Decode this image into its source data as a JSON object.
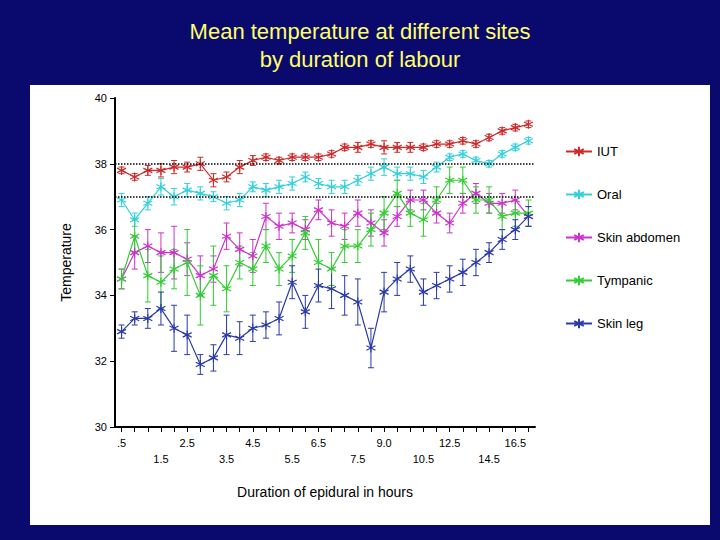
{
  "chart_data": {
    "type": "line",
    "title": "Mean temperature at different sites\nby duration of labour",
    "x_label": "Duration of epidural in hours",
    "y_label": "Temperature",
    "categories": [
      ".5",
      null,
      null,
      "1.5",
      null,
      "2.5",
      null,
      null,
      "3.5",
      null,
      "4.5",
      null,
      null,
      "5.5",
      null,
      "6.5",
      null,
      null,
      "7.5",
      null,
      "9.0",
      null,
      null,
      "10.5",
      null,
      "12.5",
      null,
      null,
      "14.5",
      null,
      "16.5",
      null
    ],
    "ylim": [
      30,
      40
    ],
    "yticks": [
      30,
      32,
      34,
      36,
      38,
      40
    ],
    "grid": false,
    "legend": "right",
    "marker": "asterisk",
    "line_style": "solid",
    "reference_lines": [
      38,
      37
    ],
    "series": [
      {
        "name": "IUT",
        "color": "#cc2b2b",
        "values": [
          37.8,
          37.6,
          37.8,
          37.8,
          37.9,
          37.9,
          38.0,
          37.5,
          37.6,
          37.9,
          38.1,
          38.2,
          38.1,
          38.2,
          38.2,
          38.2,
          38.3,
          38.5,
          38.5,
          38.6,
          38.5,
          38.5,
          38.5,
          38.5,
          38.6,
          38.6,
          38.7,
          38.6,
          38.8,
          39.0,
          39.1,
          39.2
        ],
        "errors": [
          0.1,
          0.1,
          0.15,
          0.2,
          0.2,
          0.15,
          0.2,
          0.2,
          0.15,
          0.2,
          0.15,
          0.1,
          0.1,
          0.1,
          0.1,
          0.1,
          0.1,
          0.1,
          0.15,
          0.1,
          0.2,
          0.15,
          0.15,
          0.1,
          0.1,
          0.1,
          0.1,
          0.1,
          0.1,
          0.1,
          0.1,
          0.1
        ]
      },
      {
        "name": "Oral",
        "color": "#33d0dc",
        "values": [
          36.9,
          36.3,
          36.8,
          37.3,
          37.0,
          37.2,
          37.1,
          37.0,
          36.8,
          36.9,
          37.3,
          37.2,
          37.3,
          37.4,
          37.6,
          37.4,
          37.3,
          37.3,
          37.5,
          37.7,
          37.9,
          37.7,
          37.7,
          37.6,
          37.9,
          38.2,
          38.3,
          38.1,
          38.0,
          38.3,
          38.5,
          38.7
        ],
        "errors": [
          0.2,
          0.2,
          0.2,
          0.25,
          0.25,
          0.2,
          0.2,
          0.15,
          0.2,
          0.2,
          0.15,
          0.2,
          0.2,
          0.2,
          0.15,
          0.15,
          0.2,
          0.2,
          0.15,
          0.2,
          0.25,
          0.2,
          0.2,
          0.2,
          0.15,
          0.1,
          0.1,
          0.1,
          0.1,
          0.1,
          0.1,
          0.1
        ]
      },
      {
        "name": "Skin abdomen",
        "color": "#cc33cc",
        "values": [
          34.5,
          35.3,
          35.5,
          35.3,
          35.3,
          35.1,
          34.6,
          34.8,
          35.8,
          35.4,
          35.2,
          36.4,
          36.1,
          36.2,
          36.0,
          36.6,
          36.2,
          36.1,
          36.5,
          36.2,
          35.9,
          36.4,
          36.9,
          36.9,
          36.5,
          36.2,
          36.8,
          37.1,
          36.8,
          36.8,
          36.9,
          36.4
        ],
        "errors": [
          0.3,
          0.5,
          0.5,
          0.6,
          0.8,
          0.5,
          0.6,
          0.4,
          0.4,
          0.5,
          0.5,
          0.4,
          0.4,
          0.3,
          0.3,
          0.3,
          0.4,
          0.4,
          0.4,
          0.4,
          0.4,
          0.3,
          0.3,
          0.3,
          0.3,
          0.3,
          0.3,
          0.3,
          0.3,
          0.3,
          0.3,
          0.3
        ]
      },
      {
        "name": "Tympanic",
        "color": "#33cc33",
        "values": [
          34.5,
          35.8,
          34.6,
          34.4,
          34.8,
          35.0,
          34.0,
          34.6,
          34.2,
          35.0,
          34.8,
          35.5,
          34.8,
          35.2,
          35.9,
          35.0,
          34.8,
          35.5,
          35.5,
          36.0,
          36.5,
          37.1,
          36.5,
          36.3,
          36.9,
          37.5,
          37.5,
          36.9,
          36.9,
          36.4,
          36.5,
          36.5
        ],
        "errors": [
          0.3,
          0.5,
          0.8,
          0.8,
          0.6,
          1.0,
          0.9,
          0.9,
          0.7,
          0.5,
          0.5,
          0.5,
          0.5,
          0.5,
          0.5,
          0.7,
          0.5,
          0.5,
          0.5,
          0.5,
          0.5,
          0.4,
          0.4,
          0.5,
          0.4,
          0.4,
          0.4,
          0.4,
          0.4,
          0.4,
          0.4,
          0.4
        ]
      },
      {
        "name": "Skin leg",
        "color": "#2a3aa8",
        "values": [
          32.9,
          33.3,
          33.3,
          33.6,
          33.0,
          32.8,
          31.9,
          32.1,
          32.8,
          32.7,
          33.0,
          33.1,
          33.3,
          34.4,
          33.5,
          34.3,
          34.2,
          34.0,
          33.8,
          32.4,
          34.1,
          34.5,
          34.8,
          34.1,
          34.3,
          34.5,
          34.7,
          35.0,
          35.3,
          35.7,
          36.0,
          36.4
        ],
        "errors": [
          0.2,
          0.2,
          0.3,
          0.5,
          0.7,
          0.6,
          0.3,
          0.4,
          0.6,
          0.5,
          0.4,
          0.4,
          0.5,
          0.5,
          0.5,
          0.5,
          0.6,
          0.6,
          0.7,
          0.6,
          0.6,
          0.5,
          0.4,
          0.4,
          0.4,
          0.4,
          0.4,
          0.4,
          0.3,
          0.3,
          0.3,
          0.3
        ]
      }
    ]
  }
}
